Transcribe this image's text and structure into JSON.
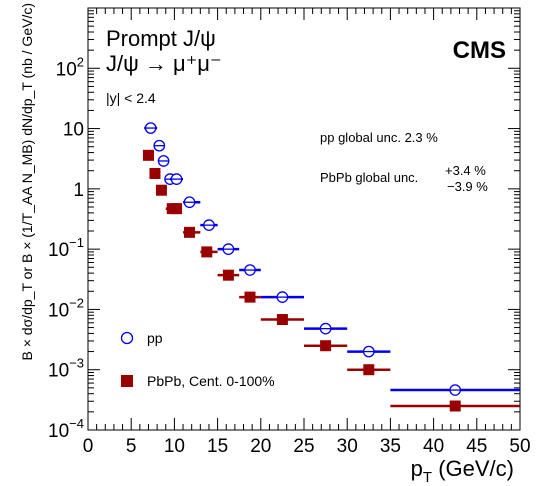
{
  "chart_data": {
    "type": "scatter",
    "title": "",
    "xlabel": "p_T (GeV/c)",
    "ylabel": "B × dσ/dp_T or B × (1/T_AA N_MB) dN/dp_T (nb / GeV/c)",
    "xlim": [
      0,
      50
    ],
    "ylim": [
      0.0001,
      1000
    ],
    "yscale": "log",
    "grid": false,
    "legend_position": "bottom-left",
    "x_ticks": [
      "0",
      "5",
      "10",
      "15",
      "20",
      "25",
      "30",
      "35",
      "40",
      "45",
      "50"
    ],
    "y_ticks": [
      "10^-4",
      "10^-3",
      "10^-2",
      "10^-1",
      "1",
      "10",
      "10^2"
    ],
    "annotations": {
      "experiment": "CMS",
      "line1": "Prompt J/ψ",
      "line2": "J/ψ → μ⁺μ⁻",
      "rapidity": "|y| < 2.4",
      "pp_unc": "pp global unc. 2.3 %",
      "pbpb_unc_label": "PbPb global unc.",
      "pbpb_unc_up": "+3.4 %",
      "pbpb_unc_down": "−3.9 %"
    },
    "series": [
      {
        "name": "pp",
        "marker": "open-circle",
        "color": "#0000ee",
        "points": [
          {
            "x": 7.25,
            "xlo": 6.5,
            "xhi": 8,
            "y": 10.2
          },
          {
            "x": 8.25,
            "xlo": 8,
            "xhi": 8.5,
            "y": 5.2
          },
          {
            "x": 8.75,
            "xlo": 8.5,
            "xhi": 9,
            "y": 2.9
          },
          {
            "x": 9.5,
            "xlo": 9,
            "xhi": 10,
            "y": 1.45
          },
          {
            "x": 10.25,
            "xlo": 9.5,
            "xhi": 11,
            "y": 1.45
          },
          {
            "x": 11.75,
            "xlo": 11,
            "xhi": 13,
            "y": 0.6
          },
          {
            "x": 14,
            "xlo": 13,
            "xhi": 15,
            "y": 0.25
          },
          {
            "x": 16.25,
            "xlo": 15,
            "xhi": 17.5,
            "y": 0.1
          },
          {
            "x": 18.75,
            "xlo": 17.5,
            "xhi": 20,
            "y": 0.045
          },
          {
            "x": 22.5,
            "xlo": 20,
            "xhi": 25,
            "y": 0.016
          },
          {
            "x": 27.5,
            "xlo": 25,
            "xhi": 30,
            "y": 0.0048
          },
          {
            "x": 32.5,
            "xlo": 30,
            "xhi": 35,
            "y": 0.002
          },
          {
            "x": 42.5,
            "xlo": 35,
            "xhi": 50,
            "y": 0.00046
          }
        ]
      },
      {
        "name": "PbPb, Cent. 0-100%",
        "marker": "filled-square",
        "color": "#990000",
        "points": [
          {
            "x": 7,
            "xlo": 6.5,
            "xhi": 7.5,
            "y": 3.6
          },
          {
            "x": 7.75,
            "xlo": 7.5,
            "xhi": 8,
            "y": 1.8
          },
          {
            "x": 8.5,
            "xlo": 8,
            "xhi": 9,
            "y": 0.95
          },
          {
            "x": 9.75,
            "xlo": 9,
            "xhi": 10.5,
            "y": 0.47
          },
          {
            "x": 10.25,
            "xlo": 9.5,
            "xhi": 10.5,
            "y": 0.47
          },
          {
            "x": 11.75,
            "xlo": 11,
            "xhi": 13,
            "y": 0.19
          },
          {
            "x": 13.75,
            "xlo": 13,
            "xhi": 15,
            "y": 0.09
          },
          {
            "x": 16.25,
            "xlo": 15,
            "xhi": 17.5,
            "y": 0.037
          },
          {
            "x": 18.75,
            "xlo": 17.5,
            "xhi": 20,
            "y": 0.016
          },
          {
            "x": 22.5,
            "xlo": 20,
            "xhi": 25,
            "y": 0.0068
          },
          {
            "x": 27.5,
            "xlo": 25,
            "xhi": 30,
            "y": 0.0025
          },
          {
            "x": 32.5,
            "xlo": 30,
            "xhi": 35,
            "y": 0.001
          },
          {
            "x": 42.5,
            "xlo": 35,
            "xhi": 50,
            "y": 0.00025
          }
        ]
      }
    ]
  }
}
